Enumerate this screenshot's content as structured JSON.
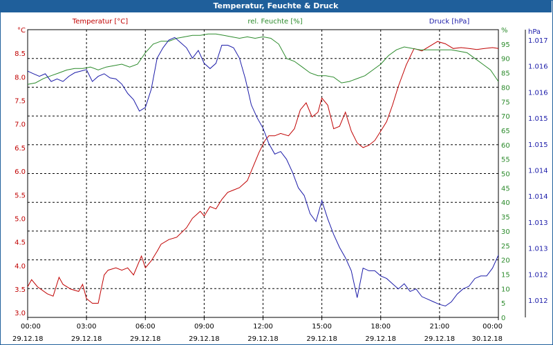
{
  "chart_data": {
    "type": "line",
    "title": "Temperatur, Feuchte & Druck",
    "x_labels": [
      {
        "time": "00:00",
        "date": "29.12.18"
      },
      {
        "time": "03:00",
        "date": "29.12.18"
      },
      {
        "time": "06:00",
        "date": "29.12.18"
      },
      {
        "time": "09:00",
        "date": "29.12.18"
      },
      {
        "time": "12:00",
        "date": "29.12.18"
      },
      {
        "time": "15:00",
        "date": "29.12.18"
      },
      {
        "time": "18:00",
        "date": "29.12.18"
      },
      {
        "time": "21:00",
        "date": "29.12.18"
      },
      {
        "time": "00:00",
        "date": "30.12.18"
      }
    ],
    "axes": {
      "temperature": {
        "unit": "°C",
        "min": 2.9,
        "max": 9.0,
        "ticks": [
          "3.0",
          "3.5",
          "4.0",
          "4.5",
          "5.0",
          "5.5",
          "6.0",
          "6.5",
          "7.0",
          "7.5",
          "8.0",
          "8.5"
        ],
        "color": "#c00000"
      },
      "humidity": {
        "unit": "%",
        "min": 0,
        "max": 100,
        "ticks": [
          "0",
          "5",
          "10",
          "15",
          "20",
          "25",
          "30",
          "35",
          "40",
          "45",
          "50",
          "55",
          "60",
          "65",
          "70",
          "75",
          "80",
          "85",
          "90",
          "95",
          "%"
        ],
        "color": "#2a8a2a"
      },
      "pressure": {
        "unit": "hPa",
        "min": 1011.7,
        "max": 1017.25,
        "ticks": [
          "1.012",
          "1.012",
          "1.013",
          "1.013",
          "1.014",
          "1.014",
          "1.015",
          "1.015",
          "1.016",
          "1.016",
          "1.017"
        ],
        "color": "#1a1aa8"
      }
    },
    "series": [
      {
        "name": "Temperatur [°C]",
        "axis": "temperature",
        "color": "#c00000",
        "x": [
          0,
          0.2,
          0.5,
          1,
          1.3,
          1.6,
          1.8,
          2.2,
          2.6,
          2.8,
          3,
          3.3,
          3.6,
          3.9,
          4.1,
          4.5,
          4.8,
          5.1,
          5.4,
          5.6,
          5.8,
          6.0,
          6.3,
          6.6,
          6.8,
          7.2,
          7.6,
          8.1,
          8.4,
          8.8,
          9.0,
          9.3,
          9.6,
          9.9,
          10.2,
          10.5,
          10.8,
          11.2,
          11.5,
          11.8,
          12.1,
          12.3,
          12.6,
          12.9,
          13.3,
          13.6,
          13.9,
          14.2,
          14.5,
          14.8,
          15.0,
          15.3,
          15.6,
          15.9,
          16.2,
          16.5,
          16.8,
          17.1,
          17.4,
          17.7,
          18.0,
          18.3,
          18.6,
          18.9,
          19.3,
          19.7,
          20.1,
          20.5,
          20.9,
          21.3,
          21.7,
          22.1,
          22.5,
          22.9,
          23.3,
          23.7,
          24.0
        ],
        "values": [
          3.55,
          3.7,
          3.55,
          3.4,
          3.35,
          3.75,
          3.6,
          3.5,
          3.45,
          3.6,
          3.3,
          3.2,
          3.2,
          3.8,
          3.9,
          3.95,
          3.9,
          3.95,
          3.8,
          4.0,
          4.2,
          3.95,
          4.1,
          4.3,
          4.45,
          4.55,
          4.6,
          4.8,
          5.0,
          5.15,
          5.05,
          5.25,
          5.2,
          5.4,
          5.55,
          5.6,
          5.65,
          5.8,
          6.1,
          6.4,
          6.65,
          6.75,
          6.75,
          6.8,
          6.75,
          6.9,
          7.3,
          7.45,
          7.15,
          7.25,
          7.55,
          7.4,
          6.9,
          6.95,
          7.25,
          6.85,
          6.6,
          6.5,
          6.55,
          6.65,
          6.85,
          7.05,
          7.4,
          7.8,
          8.25,
          8.6,
          8.55,
          8.65,
          8.75,
          8.7,
          8.6,
          8.62,
          8.6,
          8.58,
          8.6,
          8.62,
          8.6
        ]
      },
      {
        "name": "rel. Feuchte [%]",
        "axis": "humidity",
        "color": "#2a8a2a",
        "x": [
          0,
          0.4,
          0.8,
          1.2,
          1.6,
          2.0,
          2.4,
          2.8,
          3.2,
          3.6,
          4.0,
          4.4,
          4.8,
          5.2,
          5.6,
          6.0,
          6.4,
          6.8,
          7.2,
          7.6,
          8.0,
          8.4,
          8.8,
          9.2,
          9.6,
          10.0,
          10.4,
          10.8,
          11.2,
          11.6,
          12.0,
          12.4,
          12.8,
          13.2,
          13.6,
          14.0,
          14.4,
          14.8,
          15.2,
          15.6,
          16.0,
          16.4,
          16.8,
          17.2,
          17.6,
          18.0,
          18.4,
          18.8,
          19.2,
          19.6,
          20.0,
          20.4,
          20.8,
          21.2,
          21.6,
          22.0,
          22.4,
          22.8,
          23.2,
          23.6,
          24.0
        ],
        "values": [
          81,
          81.5,
          83,
          84,
          85,
          86,
          86.5,
          86.5,
          87,
          86,
          87,
          87.5,
          88,
          87,
          88,
          92,
          95,
          96,
          96,
          97,
          97.5,
          98,
          98,
          98.5,
          98.5,
          98,
          97.5,
          97,
          97.5,
          97,
          97.5,
          97,
          95,
          90,
          89,
          87,
          85,
          84,
          84,
          83.5,
          81.5,
          82,
          83,
          84,
          86,
          88,
          91,
          93,
          94,
          93.5,
          93,
          93,
          93,
          93,
          93,
          92.5,
          92,
          90,
          88,
          86,
          82
        ]
      },
      {
        "name": "Druck [hPa]",
        "axis": "pressure",
        "color": "#1a1aa8",
        "x": [
          0,
          0.3,
          0.6,
          0.9,
          1.2,
          1.5,
          1.8,
          2.1,
          2.4,
          2.7,
          3.0,
          3.3,
          3.6,
          3.9,
          4.2,
          4.5,
          4.8,
          5.1,
          5.4,
          5.7,
          6.0,
          6.3,
          6.6,
          6.9,
          7.2,
          7.5,
          7.8,
          8.1,
          8.4,
          8.7,
          9.0,
          9.3,
          9.6,
          9.9,
          10.2,
          10.5,
          10.8,
          11.1,
          11.4,
          11.7,
          12.0,
          12.3,
          12.6,
          12.9,
          13.2,
          13.5,
          13.8,
          14.1,
          14.4,
          14.7,
          15.0,
          15.3,
          15.6,
          15.9,
          16.2,
          16.5,
          16.8,
          17.1,
          17.4,
          17.7,
          18.0,
          18.3,
          18.6,
          18.9,
          19.2,
          19.5,
          19.8,
          20.1,
          20.4,
          20.7,
          21.0,
          21.3,
          21.6,
          21.9,
          22.2,
          22.5,
          22.8,
          23.1,
          23.4,
          23.7,
          24.0
        ],
        "values": [
          1016.45,
          1016.4,
          1016.35,
          1016.4,
          1016.25,
          1016.3,
          1016.25,
          1016.35,
          1016.42,
          1016.45,
          1016.48,
          1016.25,
          1016.35,
          1016.4,
          1016.32,
          1016.3,
          1016.2,
          1016.02,
          1015.9,
          1015.68,
          1015.75,
          1016.1,
          1016.7,
          1016.9,
          1017.05,
          1017.1,
          1017.0,
          1016.9,
          1016.7,
          1016.85,
          1016.6,
          1016.5,
          1016.6,
          1016.95,
          1016.95,
          1016.9,
          1016.7,
          1016.3,
          1015.8,
          1015.55,
          1015.35,
          1015.05,
          1014.85,
          1014.9,
          1014.75,
          1014.5,
          1014.2,
          1014.05,
          1013.7,
          1013.55,
          1013.95,
          1013.6,
          1013.3,
          1013.05,
          1012.85,
          1012.6,
          1012.08,
          1012.65,
          1012.6,
          1012.6,
          1012.5,
          1012.45,
          1012.35,
          1012.25,
          1012.35,
          1012.2,
          1012.25,
          1012.1,
          1012.05,
          1012.0,
          1011.95,
          1011.92,
          1012.0,
          1012.15,
          1012.25,
          1012.3,
          1012.45,
          1012.5,
          1012.5,
          1012.65,
          1012.9
        ]
      }
    ]
  }
}
